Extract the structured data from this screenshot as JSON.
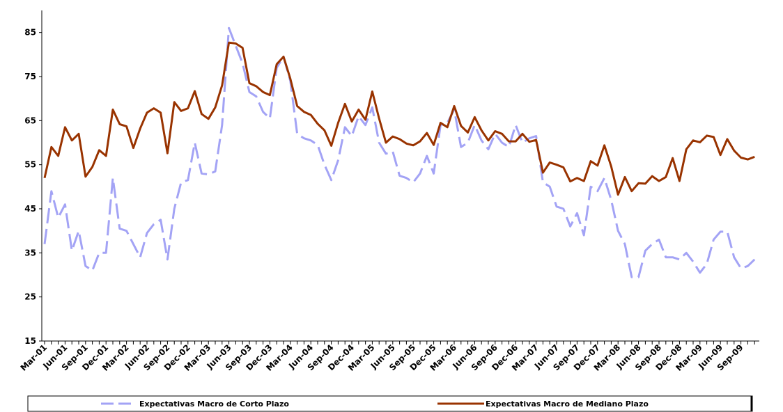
{
  "chart_data": {
    "type": "line",
    "categories": [
      "Mar-01",
      null,
      null,
      "Jun-01",
      null,
      null,
      "Sep-01",
      null,
      null,
      "Dec-01",
      null,
      null,
      "Mar-02",
      null,
      null,
      "Jun-02",
      null,
      null,
      "Sep-02",
      null,
      null,
      "Dec-02",
      null,
      null,
      "Mar-03",
      null,
      null,
      "Jun-03",
      null,
      null,
      "Sep-03",
      null,
      null,
      "Dec-03",
      null,
      null,
      "Mar-04",
      null,
      null,
      "Jun-04",
      null,
      null,
      "Sep-04",
      null,
      null,
      "Dec-04",
      null,
      null,
      "Mar-05",
      null,
      null,
      "Jun-05",
      null,
      null,
      "Sep-05",
      null,
      null,
      "Dec-05",
      null,
      null,
      "Mar-06",
      null,
      null,
      "Jun-06",
      null,
      null,
      "Sep-06",
      null,
      null,
      "Dec-06",
      null,
      null,
      "Mar-07",
      null,
      null,
      "Jun-07",
      null,
      null,
      "Sep-07",
      null,
      null,
      "Dec-07",
      null,
      null,
      "Mar-08",
      null,
      null,
      "Jun-08",
      null,
      null,
      "Sep-08",
      null,
      null,
      "Dec-08",
      null,
      null,
      "Mar-09",
      null,
      null,
      "Jun-09",
      null,
      null,
      "Sep-09",
      null,
      null
    ],
    "series": [
      {
        "name": "Expectativas Macro de Corto Plazo",
        "color": "#a3a3f5",
        "dashed": true,
        "values": [
          37,
          49,
          43,
          46,
          35.5,
          40,
          32,
          31,
          35,
          35,
          52,
          40.5,
          40,
          37,
          34,
          39.5,
          41.5,
          42.5,
          33.5,
          45,
          51,
          51.5,
          60,
          53,
          52.8,
          53.5,
          64,
          86,
          82,
          78,
          71.5,
          70.5,
          67,
          65.5,
          77,
          79.5,
          74,
          62,
          61,
          60.5,
          59.5,
          55,
          51.5,
          56,
          63.5,
          61.5,
          66,
          64,
          68,
          60,
          57.5,
          58,
          52.5,
          52,
          51,
          53,
          57,
          53,
          64,
          64.5,
          67.5,
          59,
          60,
          64,
          60.5,
          58.5,
          62,
          60,
          59,
          64,
          60,
          61,
          61.5,
          51,
          50,
          45.5,
          45,
          41,
          44,
          39,
          50,
          49,
          52,
          47,
          40,
          37,
          29.5,
          29.5,
          35.5,
          37,
          38,
          34,
          34,
          33.5,
          35,
          33,
          30.5,
          32.5,
          38,
          39.8,
          39.8,
          34,
          31.5,
          32,
          33.5
        ]
      },
      {
        "name": "Expectativas Macro de Mediano Plazo",
        "color": "#993300",
        "dashed": false,
        "values": [
          52,
          59,
          57,
          63.5,
          60.5,
          62,
          52.3,
          54.5,
          58.3,
          57,
          67.5,
          64.2,
          63.7,
          58.8,
          63.2,
          66.8,
          67.8,
          66.8,
          57.6,
          69.2,
          67.2,
          67.8,
          71.7,
          66.5,
          65.4,
          68,
          73,
          82.7,
          82.5,
          81.5,
          73.5,
          72.8,
          71.5,
          70.8,
          77.8,
          79.5,
          74.5,
          68.3,
          67,
          66.3,
          64.3,
          62.8,
          59.3,
          64.5,
          68.8,
          64.8,
          67.5,
          65.2,
          71.6,
          65.5,
          60,
          61.4,
          60.8,
          59.8,
          59.4,
          60.3,
          62.2,
          59.5,
          64.5,
          63.5,
          68.3,
          63.8,
          62.3,
          65.8,
          62.8,
          60.5,
          62.6,
          62,
          60.3,
          60.3,
          62,
          60.2,
          60.6,
          53.2,
          55.5,
          55,
          54.4,
          51.2,
          52,
          51.3,
          55.8,
          54.8,
          59.4,
          54.6,
          48.2,
          52.2,
          49,
          50.8,
          50.7,
          52.4,
          51.3,
          52.2,
          56.5,
          51.3,
          58.5,
          60.5,
          60.1,
          61.6,
          61.3,
          57.2,
          60.8,
          58.2,
          56.6,
          56.2,
          56.8
        ]
      }
    ],
    "ylim": [
      15,
      90
    ],
    "yticks": [
      15,
      25,
      35,
      45,
      55,
      65,
      75,
      85
    ]
  }
}
